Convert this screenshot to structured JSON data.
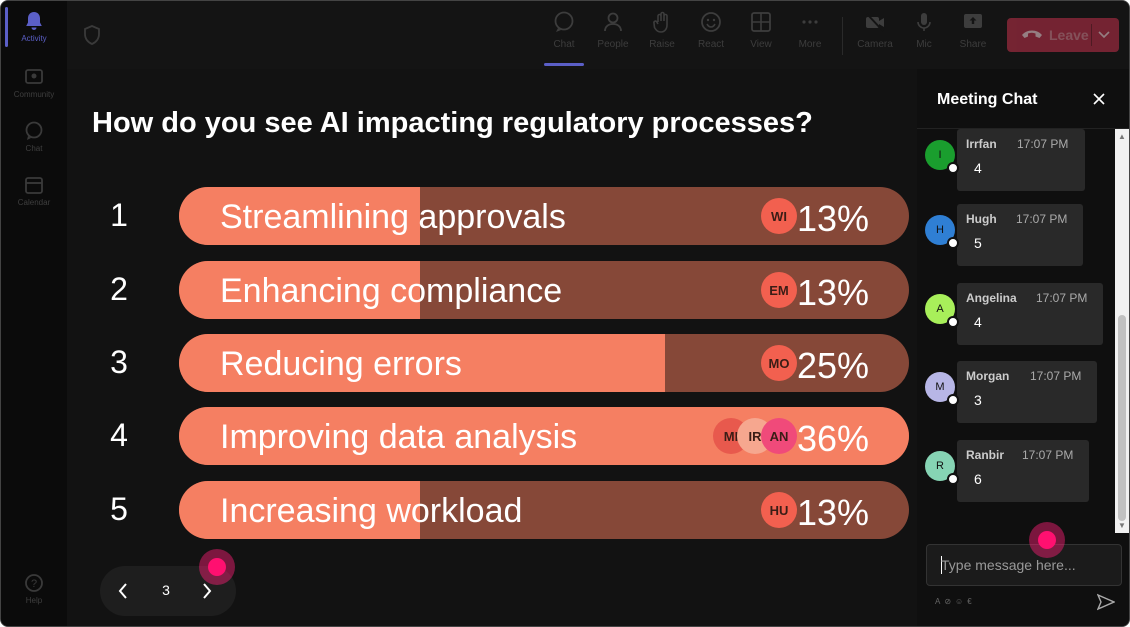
{
  "rail": {
    "items": [
      {
        "label": "Activity",
        "icon": "bell-icon"
      },
      {
        "label": "Community",
        "icon": "community-icon"
      },
      {
        "label": "Chat",
        "icon": "chat-icon"
      },
      {
        "label": "Calendar",
        "icon": "calendar-icon"
      }
    ],
    "help_label": "Help"
  },
  "toolbar": {
    "chat": "Chat",
    "people": "People",
    "raise": "Raise",
    "react": "React",
    "view": "View",
    "more": "More",
    "camera": "Camera",
    "mic": "Mic",
    "share": "Share",
    "leave": "Leave"
  },
  "poll": {
    "question": "How do you see AI impacting regulatory processes?",
    "options": [
      {
        "num": "1",
        "label": "Streamlining approvals",
        "percent": "13%",
        "fraction": 0.33,
        "voters": [
          "WI"
        ],
        "highlight": false
      },
      {
        "num": "2",
        "label": "Enhancing compliance",
        "percent": "13%",
        "fraction": 0.33,
        "voters": [
          "EM"
        ],
        "highlight": false
      },
      {
        "num": "3",
        "label": "Reducing errors",
        "percent": "25%",
        "fraction": 0.666,
        "voters": [
          "MO"
        ],
        "highlight": false
      },
      {
        "num": "4",
        "label": "Improving data analysis",
        "percent": "36%",
        "fraction": 1.0,
        "voters": [
          "MI",
          "IR",
          "AN"
        ],
        "highlight": true
      },
      {
        "num": "5",
        "label": "Increasing workload",
        "percent": "13%",
        "fraction": 0.33,
        "voters": [
          "HU"
        ],
        "highlight": false
      }
    ],
    "page": "3"
  },
  "colors": {
    "bar_fill": "#f57f62",
    "bar_track": "#864838",
    "accent": "#5b5fc7",
    "leave": "#c4314b"
  },
  "chat": {
    "title": "Meeting Chat",
    "messages": [
      {
        "name": "Irrfan",
        "initial": "I",
        "time": "17:07 PM",
        "text": "4",
        "color": "#1a9e2e"
      },
      {
        "name": "Hugh",
        "initial": "H",
        "time": "17:07 PM",
        "text": "5",
        "color": "#2f7fd4"
      },
      {
        "name": "Angelina",
        "initial": "A",
        "time": "17:07 PM",
        "text": "4",
        "color": "#a8ef5a"
      },
      {
        "name": "Morgan",
        "initial": "M",
        "time": "17:07 PM",
        "text": "3",
        "color": "#b7b6e6"
      },
      {
        "name": "Ranbir",
        "initial": "R",
        "time": "17:07 PM",
        "text": "6",
        "color": "#86d4b4"
      }
    ],
    "input_placeholder": "Type message here..."
  }
}
